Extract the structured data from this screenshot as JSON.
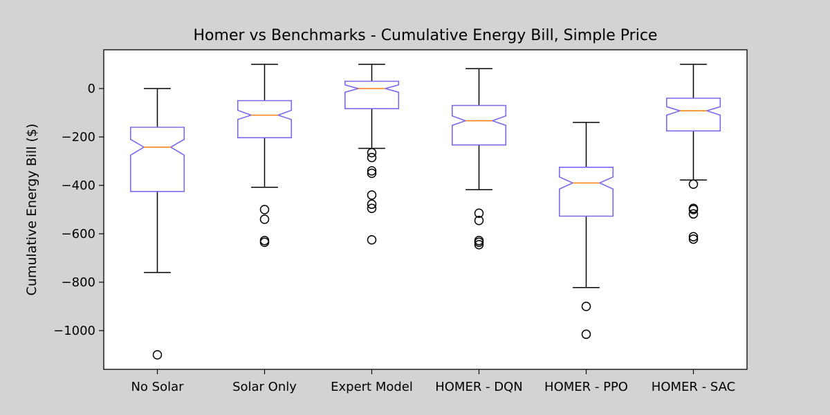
{
  "chart_data": {
    "type": "box",
    "title": "Homer vs Benchmarks - Cumulative Energy Bill, Simple Price",
    "xlabel": "",
    "ylabel": "Cumulative Energy Bill ($)",
    "ylim": [
      -1160,
      160
    ],
    "yticks": [
      0,
      -200,
      -400,
      -600,
      -800,
      -1000
    ],
    "ytick_labels": [
      "0",
      "−200",
      "−400",
      "−600",
      "−800",
      "−1000"
    ],
    "notched": true,
    "grid": false,
    "colors": {
      "figure_background": "#d3d3d3",
      "plot_background": "#ffffff",
      "box": "#7b68ee",
      "median": "#ff7f0e",
      "whisker": "#000000",
      "flier": "#000000"
    },
    "categories": [
      "No Solar",
      "Solar Only",
      "Expert Model",
      "HOMER - DQN",
      "HOMER - PPO",
      "HOMER - SAC"
    ],
    "boxes": [
      {
        "label": "No Solar",
        "whislo": -760,
        "q1": -425,
        "med": -242,
        "q3": -160,
        "whishi": 0,
        "notch_lo": -275,
        "notch_hi": -210,
        "fliers": [
          -1100
        ]
      },
      {
        "label": "Solar Only",
        "whislo": -408,
        "q1": -203,
        "med": -110,
        "q3": -50,
        "whishi": 100,
        "notch_lo": -128,
        "notch_hi": -90,
        "fliers": [
          -500,
          -540,
          -628,
          -635
        ]
      },
      {
        "label": "Expert Model",
        "whislo": -247,
        "q1": -83,
        "med": 0,
        "q3": 30,
        "whishi": 100,
        "notch_lo": -15,
        "notch_hi": 15,
        "fliers": [
          -265,
          -285,
          -340,
          -350,
          -440,
          -478,
          -495,
          -625
        ]
      },
      {
        "label": "HOMER - DQN",
        "whislo": -418,
        "q1": -233,
        "med": -133,
        "q3": -70,
        "whishi": 82,
        "notch_lo": -152,
        "notch_hi": -113,
        "fliers": [
          -515,
          -545,
          -628,
          -635,
          -645
        ]
      },
      {
        "label": "HOMER - PPO",
        "whislo": -822,
        "q1": -527,
        "med": -390,
        "q3": -325,
        "whishi": -140,
        "notch_lo": -415,
        "notch_hi": -365,
        "fliers": [
          -900,
          -1015
        ]
      },
      {
        "label": "HOMER - SAC",
        "whislo": -378,
        "q1": -175,
        "med": -92,
        "q3": -40,
        "whishi": 100,
        "notch_lo": -110,
        "notch_hi": -75,
        "fliers": [
          -395,
          -495,
          -500,
          -518,
          -612,
          -622
        ]
      }
    ]
  }
}
